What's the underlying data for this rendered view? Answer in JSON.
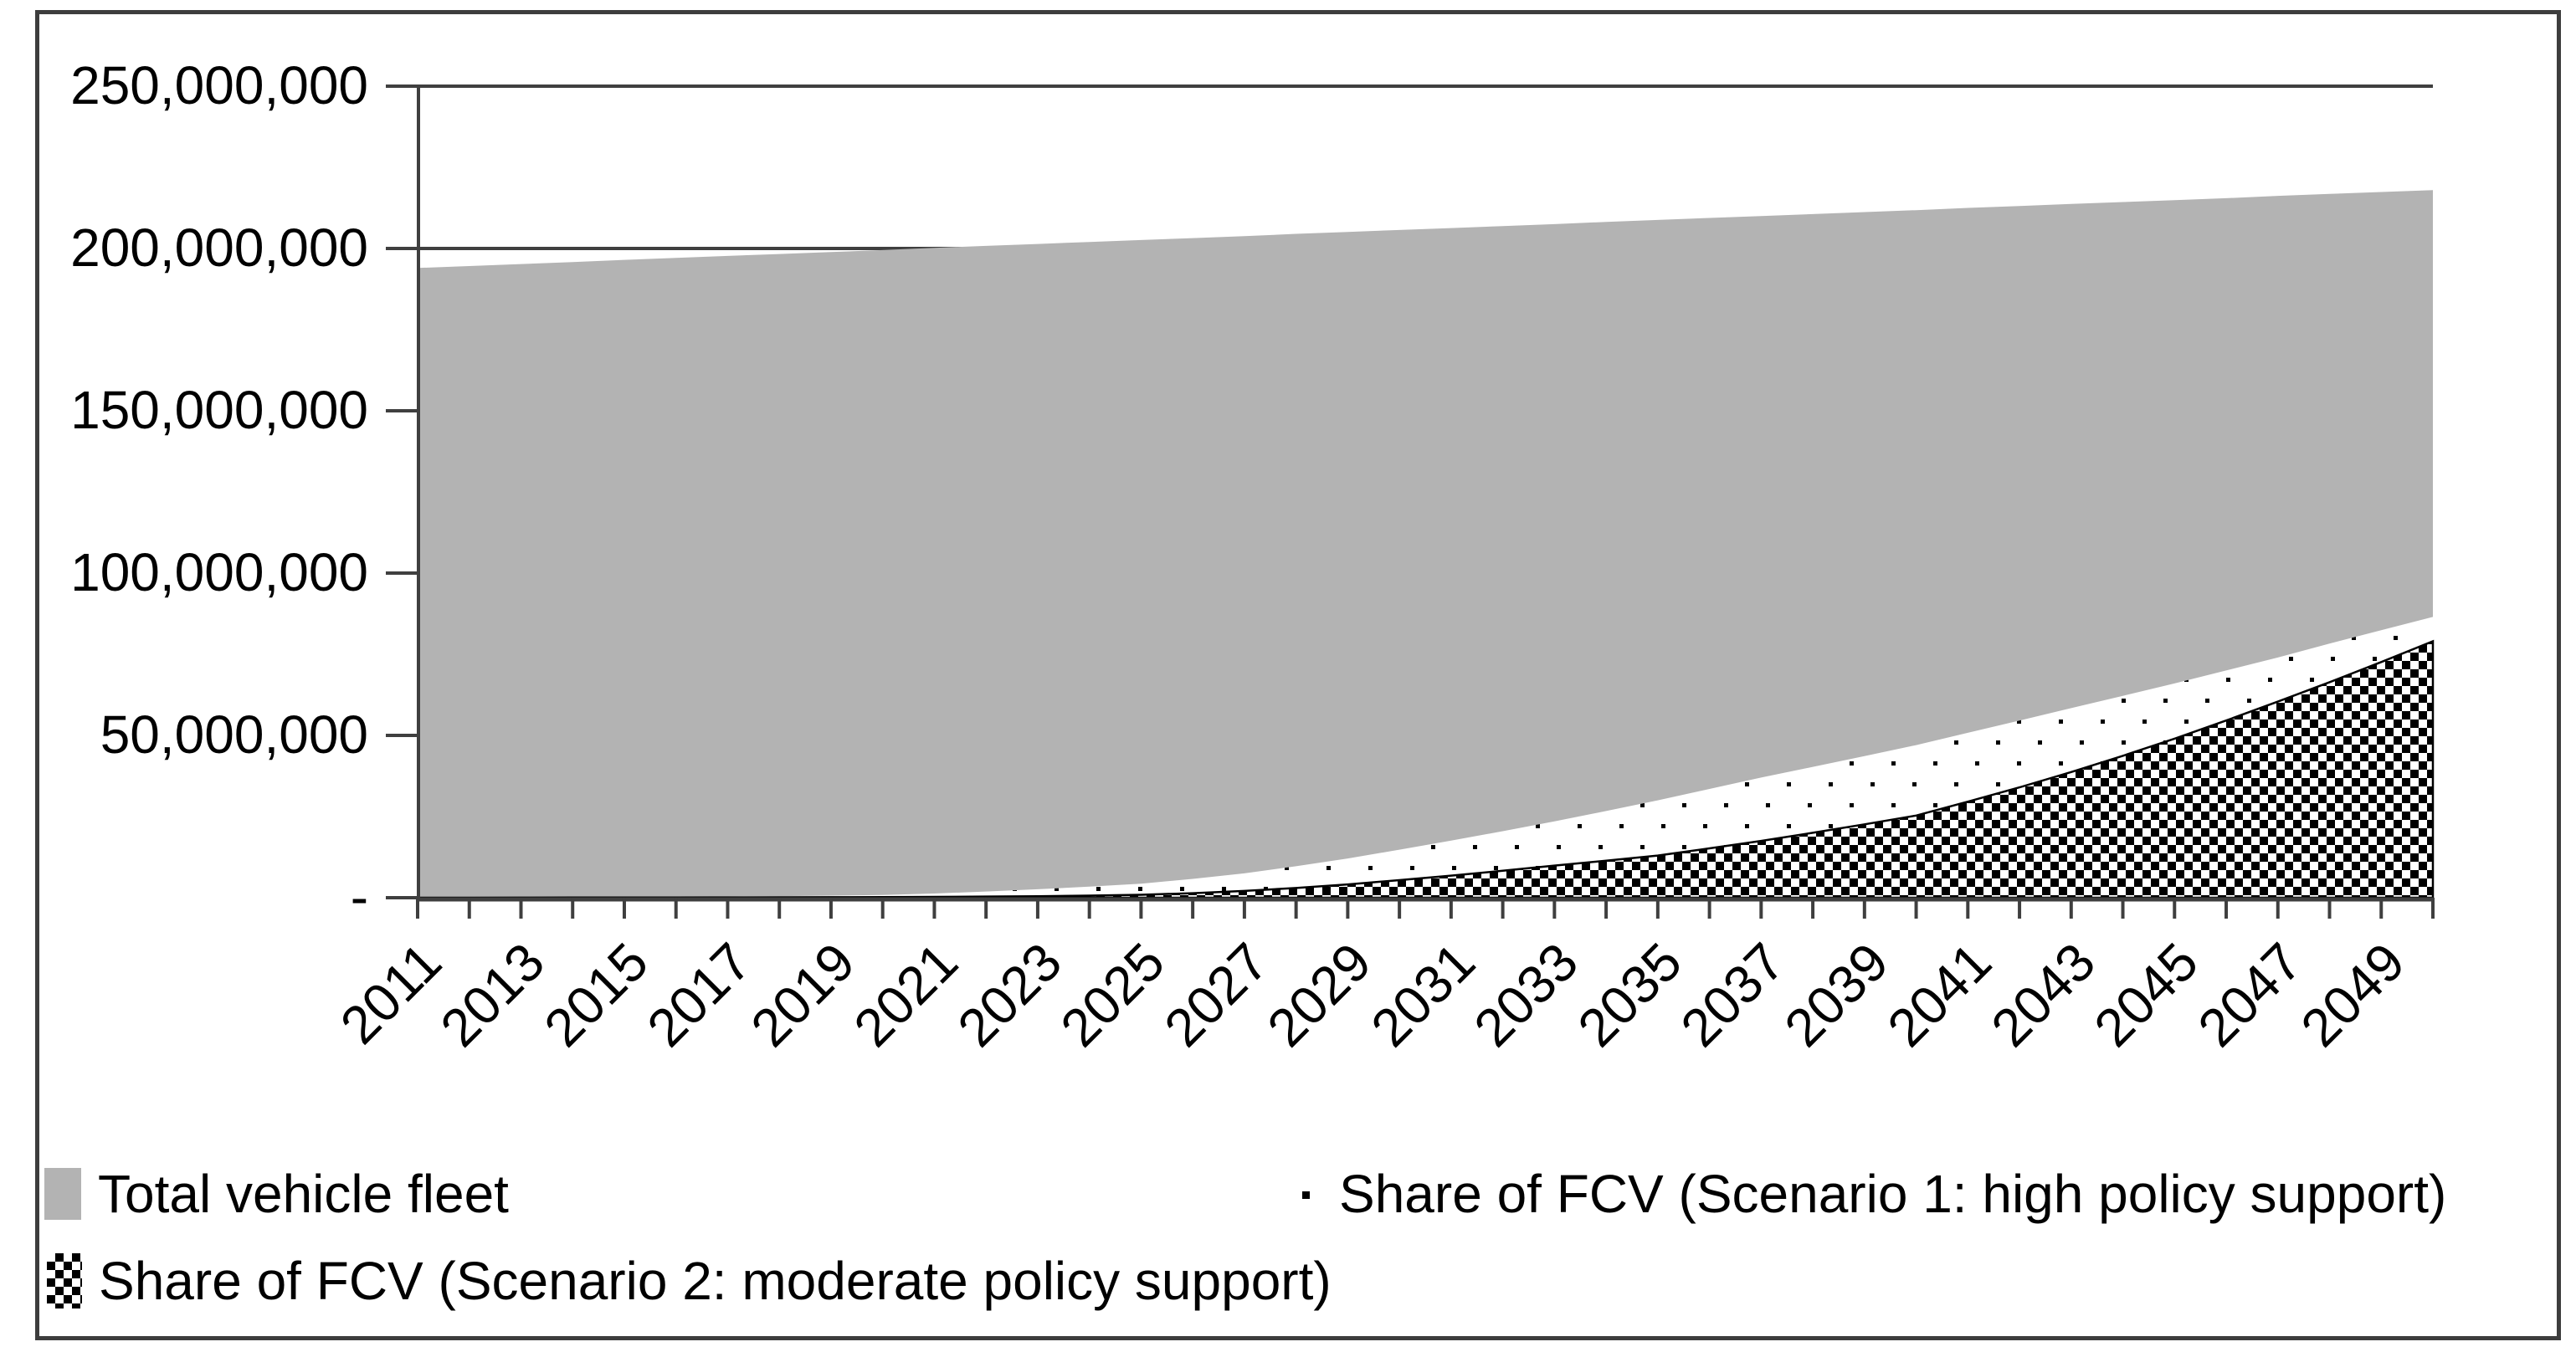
{
  "figure": {
    "background_color": "#ffffff",
    "border_color": "#3d3d3d",
    "area_gray": "#b3b3b3",
    "axis_color": "#3f3f3f",
    "text_color": "#000000"
  },
  "legend": {
    "items": [
      {
        "label": "Total vehicle fleet",
        "marker": "solid-gray-square",
        "marker_color": "#b3b3b3"
      },
      {
        "label": "Share of FCV (Scenario 1: high policy support)",
        "marker": "black-dot-pattern",
        "marker_color": "#000000"
      },
      {
        "label": "Share of FCV (Scenario 2: moderate policy support)",
        "marker": "checkerboard-pattern",
        "marker_color": "#000000"
      }
    ]
  },
  "chart_data": {
    "type": "area",
    "title": "",
    "xlabel": "",
    "ylabel": "",
    "ylim": [
      0,
      250000000
    ],
    "grid": "horizontal",
    "legend_position": "bottom",
    "y_tick_labels": [
      "-",
      "50,000,000",
      "100,000,000",
      "150,000,000",
      "200,000,000",
      "250,000,000"
    ],
    "y_tick_values_millions": [
      0,
      50,
      100,
      150,
      200,
      250
    ],
    "x_tick_labels": [
      "2011",
      "2013",
      "2015",
      "2017",
      "2019",
      "2021",
      "2023",
      "2025",
      "2027",
      "2029",
      "2031",
      "2033",
      "2035",
      "2037",
      "2039",
      "2041",
      "2043",
      "2045",
      "2047",
      "2049"
    ],
    "x": [
      2011,
      2012,
      2013,
      2014,
      2015,
      2016,
      2017,
      2018,
      2019,
      2020,
      2021,
      2022,
      2023,
      2024,
      2025,
      2026,
      2027,
      2028,
      2029,
      2030,
      2031,
      2032,
      2033,
      2034,
      2035,
      2036,
      2037,
      2038,
      2039,
      2040,
      2041,
      2042,
      2043,
      2044,
      2045,
      2046,
      2047,
      2048,
      2049,
      2050
    ],
    "series": [
      {
        "name": "Total vehicle fleet",
        "fill": "solid",
        "color": "#b3b3b3",
        "values_millions": [
          194.0,
          194.6,
          195.2,
          195.8,
          196.5,
          197.1,
          197.7,
          198.3,
          198.9,
          199.5,
          200.2,
          200.8,
          201.4,
          202.0,
          202.6,
          203.2,
          203.8,
          204.5,
          205.1,
          205.7,
          206.3,
          206.9,
          207.5,
          208.2,
          208.8,
          209.4,
          210.0,
          210.6,
          211.2,
          211.8,
          212.5,
          213.1,
          213.7,
          214.3,
          214.9,
          215.5,
          216.2,
          216.8,
          217.4,
          218.0
        ]
      },
      {
        "name": "Share of FCV (Scenario 1: high policy support)",
        "fill": "dots",
        "color": "#000000",
        "values_millions": [
          0.0,
          0.05,
          0.1,
          0.15,
          0.2,
          0.3,
          0.4,
          0.5,
          0.65,
          0.85,
          1.3,
          1.9,
          2.6,
          3.4,
          4.3,
          5.8,
          7.5,
          9.7,
          12.1,
          14.8,
          17.6,
          20.5,
          23.5,
          26.7,
          30.0,
          33.5,
          37.0,
          40.3,
          43.6,
          47.0,
          50.8,
          54.6,
          58.4,
          62.2,
          66.0,
          70.0,
          74.0,
          78.3,
          82.4,
          86.5
        ]
      },
      {
        "name": "Share of FCV (Scenario 2: moderate policy support)",
        "fill": "checkerboard",
        "color": "#000000",
        "values_millions": [
          0.0,
          0.0,
          0.02,
          0.04,
          0.06,
          0.08,
          0.1,
          0.13,
          0.16,
          0.2,
          0.27,
          0.35,
          0.45,
          0.65,
          0.9,
          1.4,
          2.1,
          3.0,
          4.1,
          5.4,
          6.8,
          8.3,
          9.9,
          11.4,
          13.0,
          15.2,
          17.5,
          20.0,
          22.6,
          25.3,
          29.6,
          34.0,
          38.7,
          43.7,
          49.0,
          54.6,
          60.4,
          66.4,
          72.6,
          79.0
        ]
      }
    ]
  }
}
